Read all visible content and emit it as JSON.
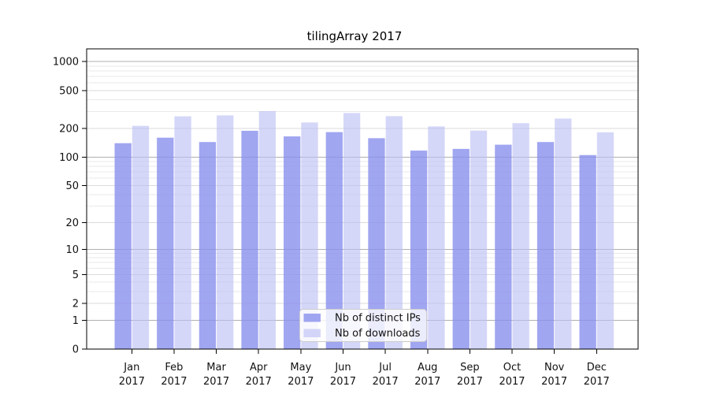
{
  "chart_data": {
    "type": "bar",
    "title": "tilingArray 2017",
    "categories": [
      "Jan",
      "Feb",
      "Mar",
      "Apr",
      "May",
      "Jun",
      "Jul",
      "Aug",
      "Sep",
      "Oct",
      "Nov",
      "Dec"
    ],
    "category_year": "2017",
    "series": [
      {
        "name": "Nb of distinct IPs",
        "color": "rgba(138,144,238,0.8)",
        "values": [
          140,
          160,
          144,
          189,
          165,
          183,
          158,
          117,
          122,
          135,
          144,
          105
        ]
      },
      {
        "name": "Nb of downloads",
        "color": "rgba(187,191,244,0.62)",
        "values": [
          213,
          268,
          274,
          304,
          231,
          290,
          269,
          210,
          190,
          227,
          254,
          182
        ]
      }
    ],
    "yscale": "log1p",
    "ylim": [
      0,
      1360
    ],
    "yticks": [
      0,
      1,
      2,
      5,
      10,
      20,
      50,
      100,
      200,
      500,
      1000
    ],
    "y_emphasized_gridlines": [
      1,
      10,
      100,
      1000
    ],
    "y_minor_gridlines": [
      3,
      4,
      6,
      7,
      8,
      9,
      30,
      40,
      60,
      70,
      80,
      90,
      300,
      400,
      600,
      700,
      800,
      900
    ],
    "grid": true,
    "legend": {
      "location": "lower center inside",
      "entries": [
        "Nb of distinct IPs",
        "Nb of downloads"
      ]
    },
    "colors": {
      "grid_minor": "#e9e9e9",
      "grid_mid": "#dbdbdb",
      "grid_major": "#b0b0b0",
      "spine": "#000000",
      "text": "#111111",
      "legend_bg": "rgba(255,255,255,0.8)",
      "legend_border": "#cccccc"
    }
  }
}
